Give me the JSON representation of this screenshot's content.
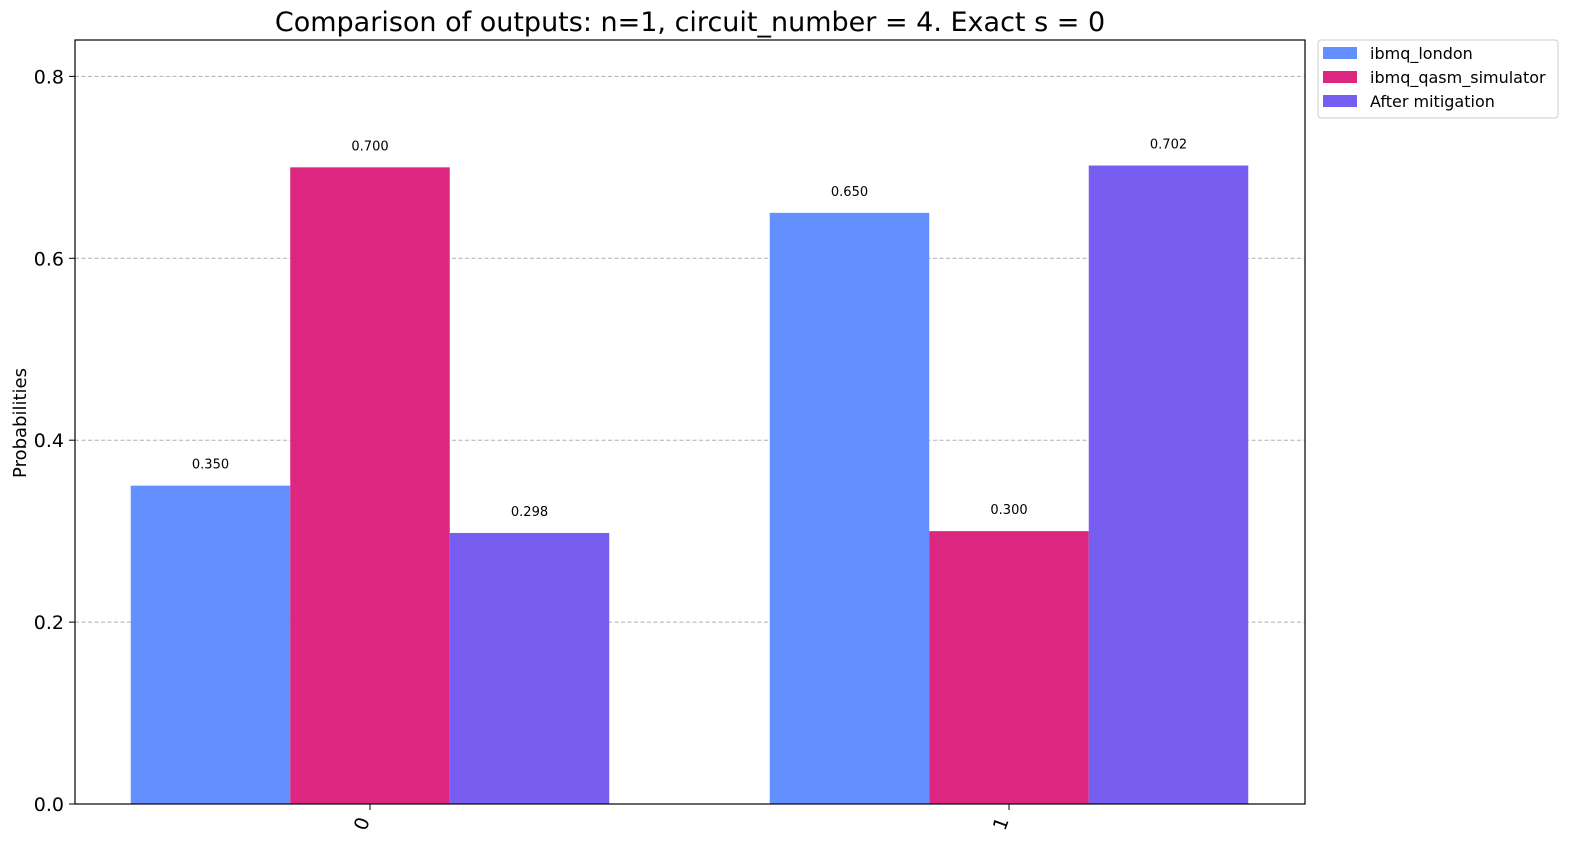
{
  "chart_data": {
    "type": "bar",
    "title": "Comparison of outputs: n=1, circuit_number = 4. Exact s = 0",
    "xlabel": "",
    "ylabel": "Probabilities",
    "categories": [
      "0",
      "1"
    ],
    "ylim": [
      0,
      0.84
    ],
    "yticks": [
      "0.0",
      "0.2",
      "0.4",
      "0.6",
      "0.8"
    ],
    "grid": true,
    "legend_position": "outside-top-right",
    "series": [
      {
        "name": "ibmq_london",
        "color": "#648fff",
        "values": [
          0.35,
          0.65
        ],
        "labels": [
          "0.350",
          "0.650"
        ]
      },
      {
        "name": "ibmq_qasm_simulator",
        "color": "#dc267f",
        "values": [
          0.7,
          0.3
        ],
        "labels": [
          "0.700",
          "0.300"
        ]
      },
      {
        "name": "After mitigation",
        "color": "#785ef0",
        "values": [
          0.298,
          0.702
        ],
        "labels": [
          "0.298",
          "0.702"
        ]
      }
    ]
  }
}
